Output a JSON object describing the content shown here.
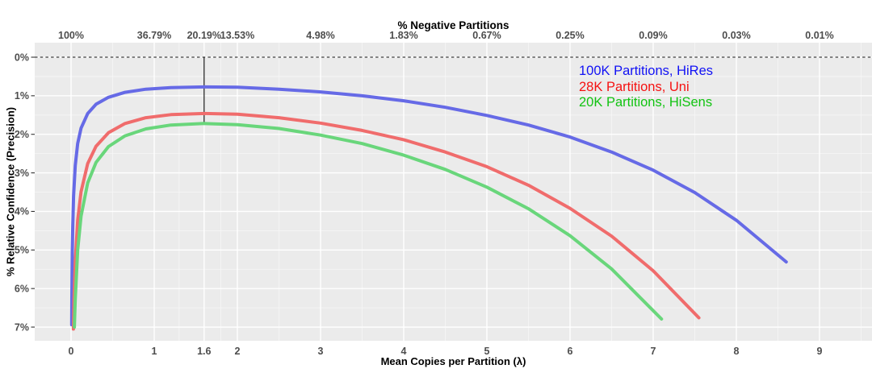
{
  "chart": {
    "panel_background": "#ebebeb",
    "major_grid_color": "#ffffff",
    "minor_grid_color": "#f7f7f7",
    "tick_text_color": "#4d4d4d",
    "axis_tick_color": "#333333",
    "zero_line_color": "#3c3c3c",
    "marker_line_color": "#1a1a1a"
  },
  "chart_data": {
    "type": "line",
    "title": "",
    "grid": true,
    "legend_position": "top-right-inside",
    "top_axis": {
      "label": "% Negative Partitions",
      "ticks": [
        0,
        1,
        1.6,
        2,
        3,
        4,
        5,
        6,
        7,
        8,
        9
      ],
      "tick_labels": [
        "100%",
        "36.79%",
        "20.19%",
        "13.53%",
        "4.98%",
        "1.83%",
        "0.67%",
        "0.25%",
        "0.09%",
        "0.03%",
        "0.01%"
      ]
    },
    "x_axis": {
      "label": "Mean Copies per Partition (λ)",
      "ticks": [
        0,
        1,
        1.6,
        2,
        3,
        4,
        5,
        6,
        7,
        8,
        9
      ],
      "tick_labels": [
        "0",
        "1",
        "1.6",
        "2",
        "3",
        "4",
        "5",
        "6",
        "7",
        "8",
        "9"
      ],
      "range": [
        -0.44,
        9.63
      ]
    },
    "y_axis": {
      "label": "% Relative Confidence (Precision)",
      "ticks": [
        0,
        1,
        2,
        3,
        4,
        5,
        6,
        7
      ],
      "tick_labels": [
        "0%",
        "1%",
        "2%",
        "3%",
        "4%",
        "5%",
        "6%",
        "7%"
      ],
      "range": [
        -0.35,
        7.4
      ],
      "inverted": true
    },
    "annotations": {
      "dashed_zero_line_y": 0,
      "vertical_marker": {
        "x": 1.6,
        "y_from": 0,
        "y_to": 1.72
      }
    },
    "series": [
      {
        "label": "100K Partitions, HiRes",
        "legend_color": "#1212f5",
        "line_color": "#666ae6",
        "x": [
          0.008,
          0.01,
          0.015,
          0.02,
          0.03,
          0.05,
          0.08,
          0.12,
          0.2,
          0.3,
          0.45,
          0.65,
          0.9,
          1.2,
          1.6,
          2,
          2.5,
          3,
          3.5,
          4,
          4.5,
          5,
          5.5,
          6,
          6.5,
          7,
          7.5,
          8,
          8.6
        ],
        "y": [
          6.94,
          6.21,
          5.08,
          4.4,
          3.61,
          2.81,
          2.24,
          1.84,
          1.46,
          1.22,
          1.04,
          0.91,
          0.83,
          0.79,
          0.77,
          0.78,
          0.83,
          0.9,
          1.0,
          1.13,
          1.3,
          1.51,
          1.76,
          2.07,
          2.46,
          2.93,
          3.51,
          4.23,
          5.31
        ]
      },
      {
        "label": "28K Partitions, Uni",
        "legend_color": "#f51212",
        "line_color": "#f06c6c",
        "x": [
          0.028,
          0.035,
          0.05,
          0.08,
          0.12,
          0.2,
          0.3,
          0.45,
          0.65,
          0.9,
          1.2,
          1.6,
          2,
          2.5,
          3,
          3.5,
          4,
          4.5,
          5,
          5.5,
          6,
          6.5,
          7,
          7.55
        ],
        "y": [
          7.05,
          6.32,
          5.3,
          4.23,
          3.49,
          2.76,
          2.31,
          1.96,
          1.72,
          1.57,
          1.49,
          1.46,
          1.48,
          1.57,
          1.71,
          1.9,
          2.14,
          2.46,
          2.84,
          3.32,
          3.92,
          4.64,
          5.54,
          6.76
        ]
      },
      {
        "label": "20K Partitions, HiSens",
        "legend_color": "#12c312",
        "line_color": "#69d67b",
        "x": [
          0.04,
          0.05,
          0.08,
          0.12,
          0.2,
          0.3,
          0.45,
          0.65,
          0.9,
          1.2,
          1.6,
          2,
          2.5,
          3,
          3.5,
          4,
          4.5,
          5,
          5.5,
          6,
          6.5,
          7.1
        ],
        "y": [
          7.0,
          6.28,
          5.0,
          4.12,
          3.26,
          2.73,
          2.32,
          2.04,
          1.86,
          1.76,
          1.72,
          1.75,
          1.85,
          2.02,
          2.24,
          2.54,
          2.91,
          3.37,
          3.93,
          4.63,
          5.49,
          6.79
        ]
      }
    ]
  }
}
